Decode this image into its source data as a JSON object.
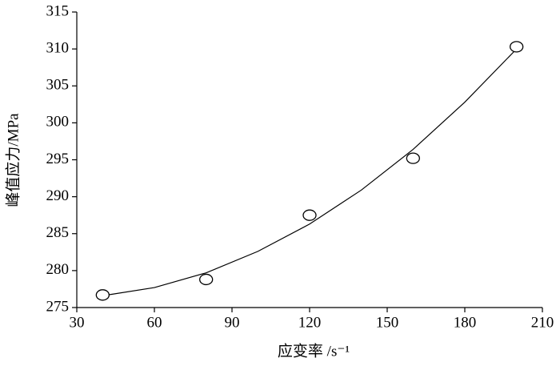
{
  "chart_data": {
    "type": "scatter",
    "x_label": "应变率 /s⁻¹",
    "y_label": "峰值应力/MPa",
    "points": {
      "x": [
        40,
        80,
        120,
        160,
        200
      ],
      "values": [
        276.7,
        278.8,
        287.5,
        295.2,
        310.3
      ]
    },
    "curve": {
      "x": [
        40,
        60,
        80,
        100,
        120,
        140,
        160,
        180,
        200
      ],
      "values": [
        276.6,
        277.7,
        279.7,
        282.6,
        286.3,
        290.9,
        296.4,
        302.8,
        310.0
      ]
    },
    "color": "#000000",
    "xlim": [
      30,
      210
    ],
    "xticks": [
      30,
      60,
      90,
      120,
      150,
      180,
      210
    ],
    "ylim": [
      275,
      315
    ],
    "yticks": [
      275,
      280,
      285,
      290,
      295,
      300,
      305,
      310,
      315
    ],
    "grid": false
  }
}
